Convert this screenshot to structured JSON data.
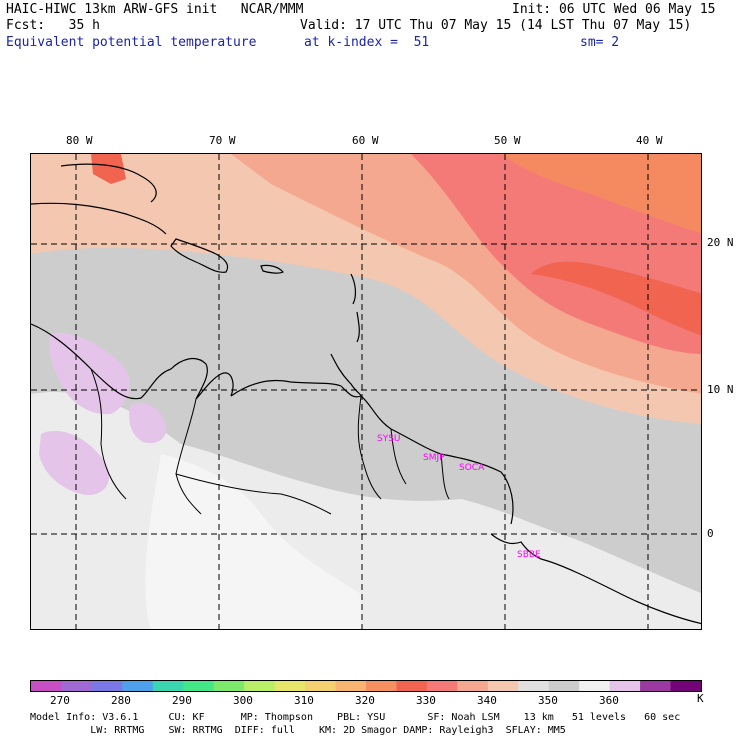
{
  "header": {
    "line1_left": "HAIC-HIWC 13km ARW-GFS init   NCAR/MMM",
    "line1_right": "Init: 06 UTC Wed 06 May 15",
    "line2_left": "Fcst:   35 h",
    "line2_right": "Valid: 17 UTC Thu 07 May 15 (14 LST Thu 07 May 15)",
    "line3_left": "Equivalent potential temperature",
    "line3_mid": "at k-index =  51",
    "line3_right": "sm= 2"
  },
  "map": {
    "lon_labels": [
      "80 W",
      "70 W",
      "60 W",
      "50 W",
      "40 W"
    ],
    "lat_labels": [
      "20 N",
      "10 N",
      "0"
    ],
    "stations": [
      "SYSU",
      "SMJP",
      "SOCA",
      "SBBE"
    ]
  },
  "colorbar": {
    "colors": [
      "#c64fc4",
      "#a06ad4",
      "#7a78e6",
      "#4fa0ea",
      "#3ad6b0",
      "#42e888",
      "#7ce86c",
      "#b8ee68",
      "#e6e66a",
      "#f4d070",
      "#f8b470",
      "#f69060",
      "#f06450",
      "#f47a78",
      "#f4a890",
      "#f4c8b0",
      "#e0e0e0",
      "#cccccc",
      "#f0f0f0",
      "#e4c4e8",
      "#9a3aa0",
      "#720478"
    ],
    "tick_labels": [
      "270",
      "280",
      "290",
      "300",
      "310",
      "320",
      "330",
      "340",
      "350",
      "360"
    ],
    "unit": "K"
  },
  "model_info": {
    "line1": "Model Info: V3.6.1     CU: KF      MP: Thompson    PBL: YSU       SF: Noah LSM    13 km   51 levels   60 sec",
    "line2": "          LW: RRTMG    SW: RRTMG  DIFF: full    KM: 2D Smagor DAMP: Rayleigh3  SFLAY: MM5"
  }
}
